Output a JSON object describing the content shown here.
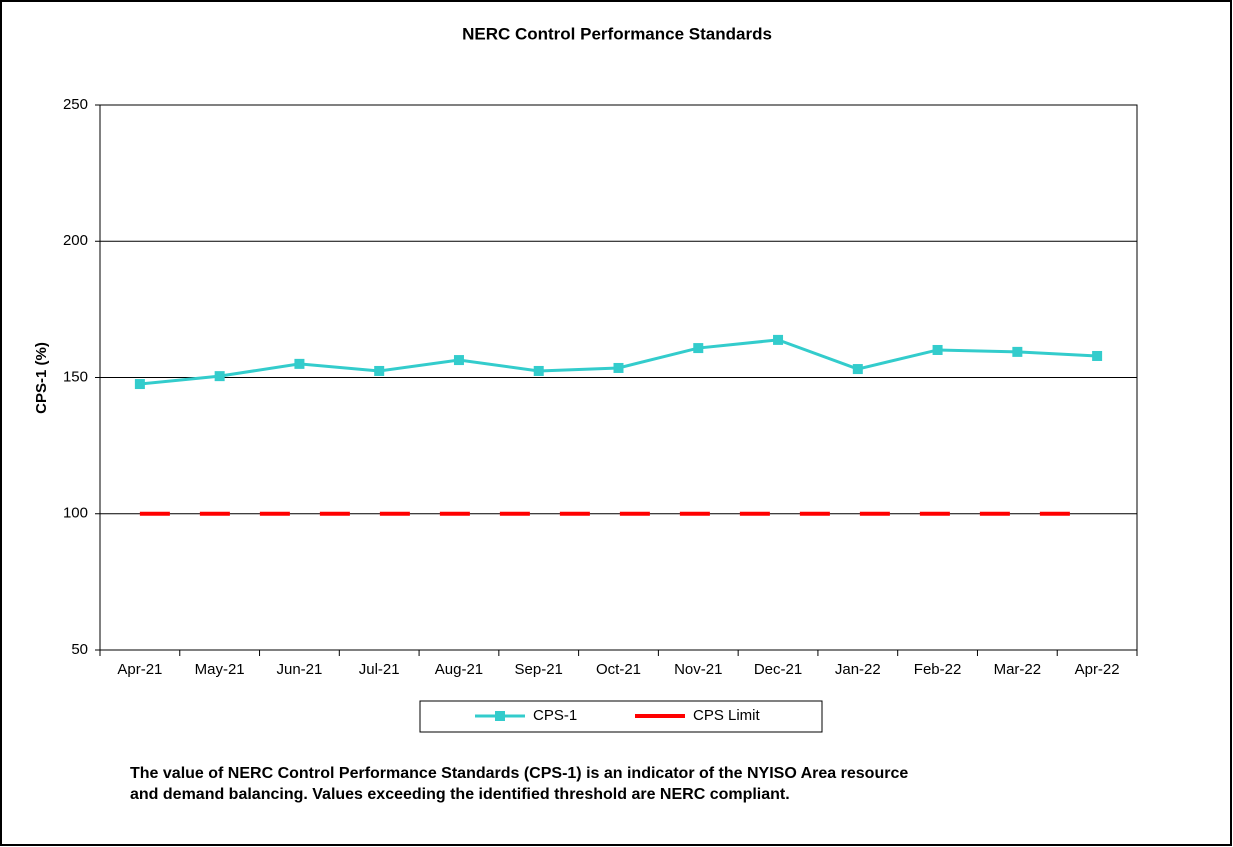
{
  "chart_data": {
    "type": "line",
    "title": "NERC Control Performance Standards",
    "y_label": "CPS-1 (%)",
    "y_label_color": "#33cccc",
    "categories": [
      "Apr-21",
      "May-21",
      "Jun-21",
      "Jul-21",
      "Aug-21",
      "Sep-21",
      "Oct-21",
      "Nov-21",
      "Dec-21",
      "Jan-22",
      "Feb-22",
      "Mar-22",
      "Apr-22"
    ],
    "series": [
      {
        "name": "CPS-1",
        "color": "#33cccc",
        "marker": "square",
        "dashed": false,
        "values": [
          147.6,
          150.5,
          155,
          152.4,
          156.4,
          152.4,
          153.5,
          160.8,
          163.8,
          153.1,
          160.1,
          159.4,
          157.9
        ]
      },
      {
        "name": "CPS Limit",
        "color": "#ff0000",
        "marker": "none",
        "dashed": true,
        "values": [
          100,
          100,
          100,
          100,
          100,
          100,
          100,
          100,
          100,
          100,
          100,
          100,
          100
        ]
      }
    ],
    "ylim": [
      50,
      250
    ],
    "yticks": [
      50,
      100,
      150,
      200,
      250
    ],
    "grid": true,
    "legend": "bottom",
    "note": [
      "The value of NERC Control Performance Standards (CPS-1) is an indicator of the NYISO Area resource",
      "and demand balancing. Values exceeding the identified threshold are NERC compliant."
    ]
  }
}
